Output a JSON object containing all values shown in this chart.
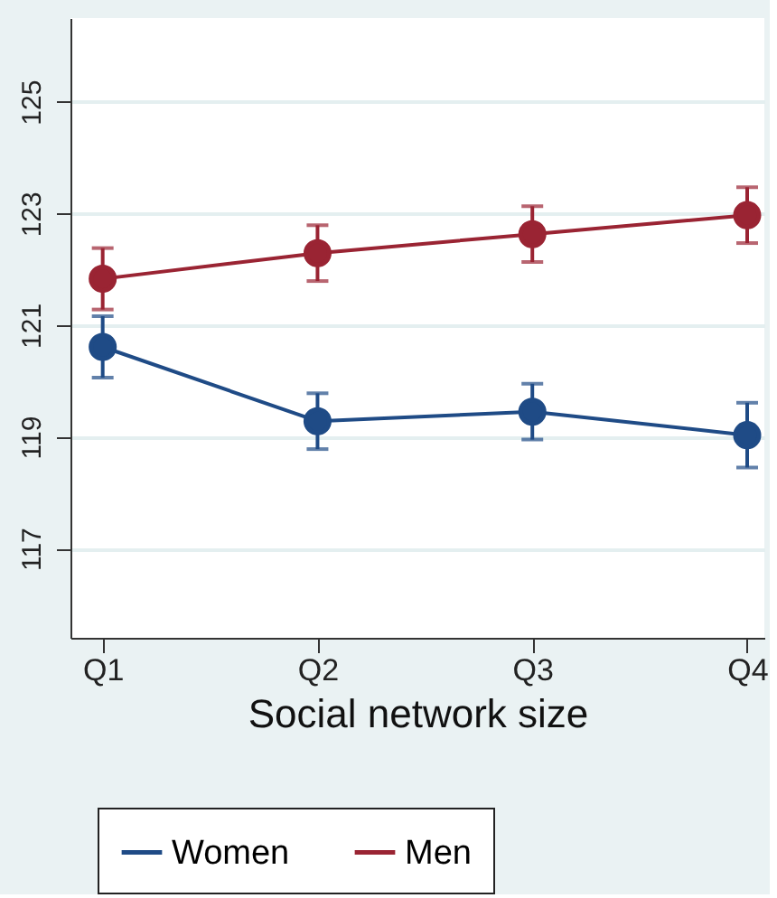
{
  "chart_data": {
    "type": "line",
    "xlabel": "Social network size",
    "categories": [
      "Q1",
      "Q2",
      "Q3",
      "Q4"
    ],
    "series": [
      {
        "name": "Women",
        "color": "#1f4b86",
        "values": [
          120.61,
          119.28,
          119.45,
          119.03
        ],
        "errors": [
          0.55,
          0.5,
          0.5,
          0.58
        ]
      },
      {
        "name": "Men",
        "color": "#9a2433",
        "values": [
          121.83,
          122.29,
          122.63,
          122.97
        ],
        "errors": [
          0.55,
          0.5,
          0.5,
          0.5
        ]
      }
    ],
    "ylim": [
      115.4,
      126.5
    ],
    "yticks": [
      117,
      119,
      121,
      123,
      125
    ],
    "grid": "y",
    "legend": "bottom",
    "marker": "circle",
    "line_style": "solid"
  }
}
